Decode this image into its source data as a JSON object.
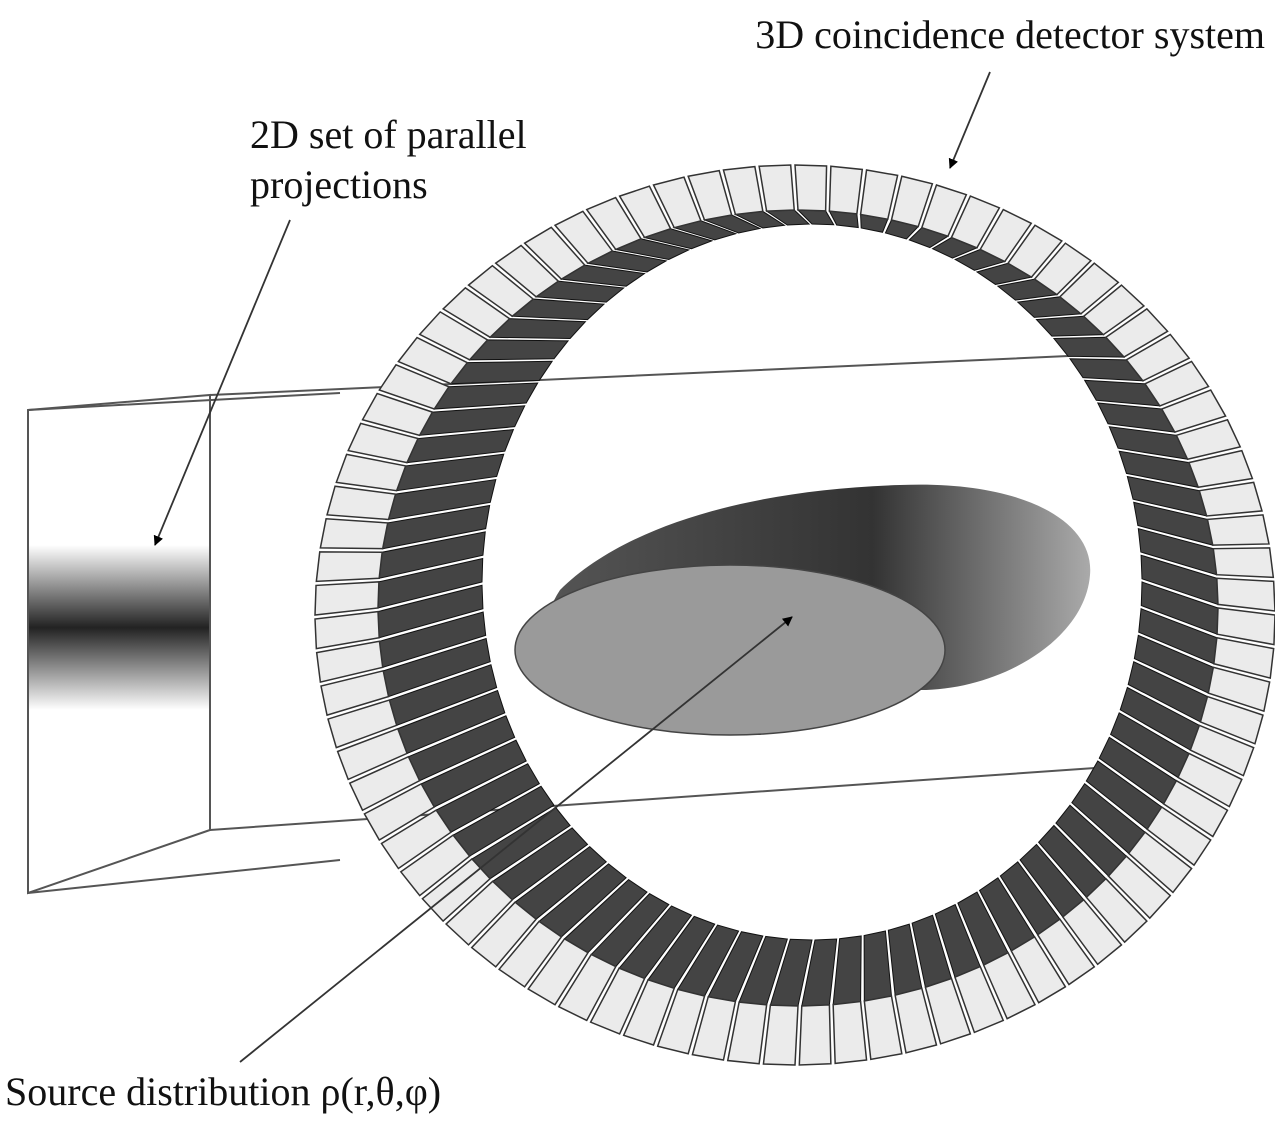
{
  "labels": {
    "detector": "3D coincidence detector system",
    "projections": [
      "2D set of parallel",
      "projections"
    ],
    "source": "Source distribution ρ(r,θ,φ)"
  }
}
